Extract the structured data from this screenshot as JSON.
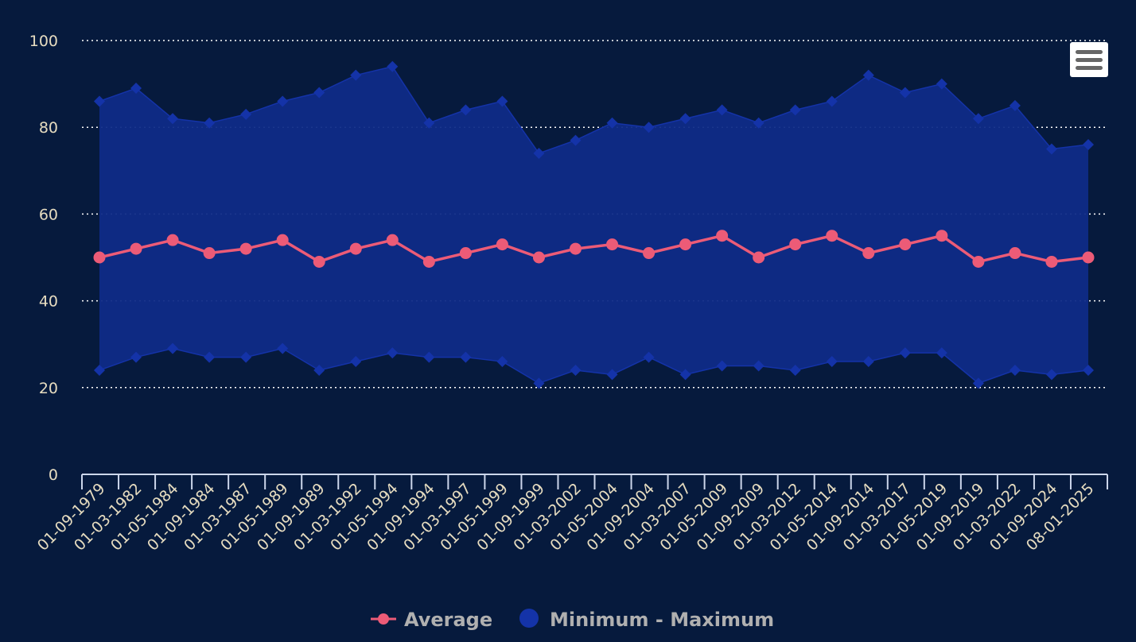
{
  "colors": {
    "background": "#061a3d",
    "average": "#ec5b77",
    "range_fill": "#0f2b87",
    "range_marker": "#1433a8",
    "grid": "#ffffff",
    "axis": "#ccd6eb",
    "tick_text": "#e6dcc0",
    "legend_text": "#b0b0b0"
  },
  "menu": {
    "icon": "hamburger-menu-icon"
  },
  "chart_data": {
    "type": "line",
    "title": "",
    "xlabel": "",
    "ylabel": "",
    "ylim": [
      0,
      100
    ],
    "y_ticks": [
      0,
      20,
      40,
      60,
      80,
      100
    ],
    "grid": true,
    "legend_position": "bottom-center",
    "categories": [
      "01-09-1979",
      "01-03-1982",
      "01-05-1984",
      "01-09-1984",
      "01-03-1987",
      "01-05-1989",
      "01-09-1989",
      "01-03-1992",
      "01-05-1994",
      "01-09-1994",
      "01-03-1997",
      "01-05-1999",
      "01-09-1999",
      "01-03-2002",
      "01-05-2004",
      "01-09-2004",
      "01-03-2007",
      "01-05-2009",
      "01-09-2009",
      "01-03-2012",
      "01-05-2014",
      "01-09-2014",
      "01-03-2017",
      "01-05-2019",
      "01-09-2019",
      "01-03-2022",
      "01-09-2024",
      "08-01-2025"
    ],
    "series": [
      {
        "name": "Average",
        "type": "line",
        "values": [
          50,
          52,
          54,
          51,
          52,
          54,
          49,
          52,
          54,
          49,
          51,
          53,
          50,
          52,
          53,
          51,
          53,
          55,
          50,
          53,
          55,
          51,
          53,
          55,
          49,
          51,
          49,
          50
        ]
      },
      {
        "name": "Minimum - Maximum",
        "type": "arearange",
        "low": [
          24,
          27,
          29,
          27,
          27,
          29,
          24,
          26,
          28,
          27,
          27,
          26,
          21,
          24,
          23,
          27,
          23,
          25,
          25,
          24,
          26,
          26,
          28,
          28,
          21,
          24,
          23,
          24
        ],
        "high": [
          86,
          89,
          82,
          81,
          83,
          86,
          88,
          92,
          94,
          81,
          84,
          86,
          74,
          77,
          81,
          80,
          82,
          84,
          81,
          84,
          86,
          92,
          88,
          90,
          82,
          85,
          75,
          76
        ]
      }
    ]
  }
}
